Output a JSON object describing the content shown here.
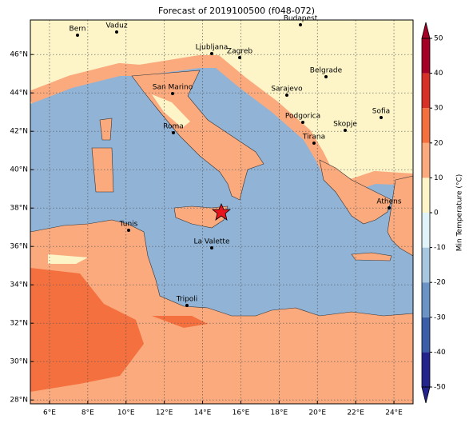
{
  "title": "Forecast of 2019100500 (f048-072)",
  "map": {
    "xlim": [
      5,
      25
    ],
    "ylim": [
      27.8,
      47.8
    ],
    "xticks": [
      {
        "value": 6,
        "label": "6°E"
      },
      {
        "value": 8,
        "label": "8°E"
      },
      {
        "value": 10,
        "label": "10°E"
      },
      {
        "value": 12,
        "label": "12°E"
      },
      {
        "value": 14,
        "label": "14°E"
      },
      {
        "value": 16,
        "label": "16°E"
      },
      {
        "value": 18,
        "label": "18°E"
      },
      {
        "value": 20,
        "label": "20°E"
      },
      {
        "value": 22,
        "label": "22°E"
      },
      {
        "value": 24,
        "label": "24°E"
      }
    ],
    "yticks": [
      {
        "value": 28,
        "label": "28°N"
      },
      {
        "value": 30,
        "label": "30°N"
      },
      {
        "value": 32,
        "label": "32°N"
      },
      {
        "value": 34,
        "label": "34°N"
      },
      {
        "value": 36,
        "label": "36°N"
      },
      {
        "value": 38,
        "label": "38°N"
      },
      {
        "value": 40,
        "label": "40°N"
      },
      {
        "value": 42,
        "label": "42°N"
      },
      {
        "value": 44,
        "label": "44°N"
      },
      {
        "value": 46,
        "label": "46°N"
      }
    ],
    "grid": true,
    "cities": [
      "Bern",
      "Vaduz",
      "Budapest",
      "Ljubljana",
      "Zagreb",
      "Belgrade",
      "Sarajevo",
      "San Marino",
      "Sofia",
      "Podgorica",
      "Skopje",
      "Roma",
      "Tirana",
      "Athens",
      "Tunis",
      "La Valette",
      "Tripoli"
    ]
  },
  "colorbar": {
    "label": "Min Temperature (°C)",
    "lim": [
      -50,
      50
    ],
    "ticks": [
      -50,
      -40,
      -30,
      -20,
      -10,
      0,
      10,
      20,
      30,
      40,
      50
    ],
    "colors": [
      "#23238e",
      "#3a5fa8",
      "#6a93c6",
      "#a7c6e0",
      "#e0f3f8",
      "#fdf5c8",
      "#fbaa7e",
      "#f4703f",
      "#d73027",
      "#a50026"
    ]
  }
}
